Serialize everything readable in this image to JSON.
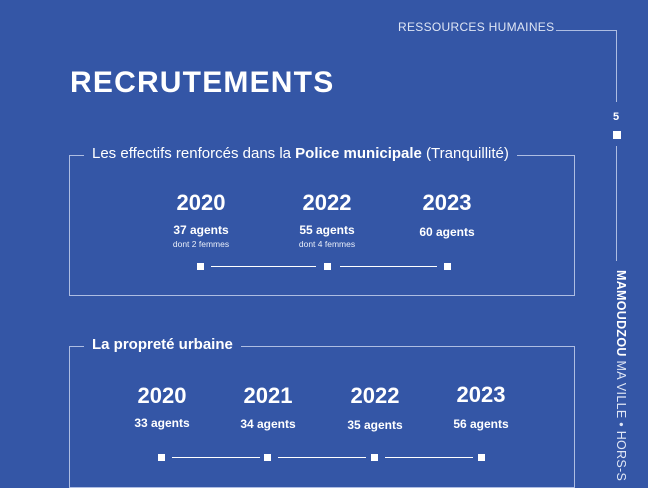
{
  "header": {
    "section_label": "RESSOURCES HUMAINES",
    "page_number": "5",
    "rail_brand": "MAMOUDZOU",
    "rail_rest": " MA VILLE • HORS-S"
  },
  "title": "RECRUTEMENTS",
  "police": {
    "title_prefix": "Les effectifs renforcés dans la ",
    "title_strong": "Police municipale",
    "title_suffix": " (Tranquillité)",
    "entries": [
      {
        "year": "2020",
        "agents": "37 agents",
        "note": "dont 2 femmes"
      },
      {
        "year": "2022",
        "agents": "55 agents",
        "note": "dont 4 femmes"
      },
      {
        "year": "2023",
        "agents": "60 agents",
        "note": ""
      }
    ]
  },
  "proprete": {
    "title": "La propreté urbaine",
    "entries": [
      {
        "year": "2020",
        "agents": "33 agents"
      },
      {
        "year": "2021",
        "agents": "34 agents"
      },
      {
        "year": "2022",
        "agents": "35 agents"
      },
      {
        "year": "2023",
        "agents": "56 agents"
      }
    ]
  }
}
